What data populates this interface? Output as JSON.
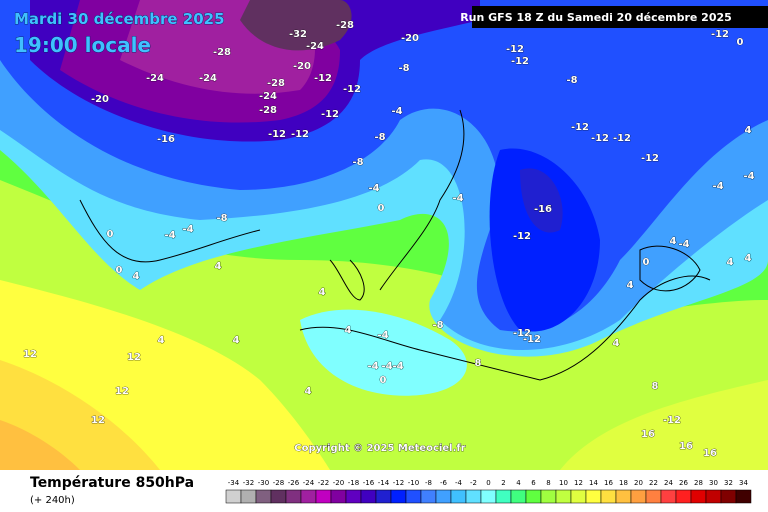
{
  "header": {
    "date": "Mardi 30 décembre 2025",
    "time": "19:00 locale",
    "run": "Run GFS 18 Z du Samedi 20 décembre 2025"
  },
  "copyright": "Copyright © 2025 Meteociel.fr",
  "footer": {
    "title": "Température 850hPa",
    "lead": "(+ 240h)"
  },
  "legend": {
    "ticks": [
      -34,
      -32,
      -30,
      -28,
      -26,
      -24,
      -22,
      -20,
      -18,
      -16,
      -14,
      -12,
      -10,
      -8,
      -6,
      -4,
      -2,
      0,
      2,
      4,
      6,
      8,
      10,
      12,
      14,
      16,
      18,
      20,
      22,
      24,
      26,
      28,
      30,
      32,
      34
    ],
    "colors": [
      "#d0d0d0",
      "#b0b0b0",
      "#806080",
      "#603060",
      "#803080",
      "#a020a0",
      "#c000c0",
      "#8000a0",
      "#6000c0",
      "#4000c0",
      "#2020d0",
      "#0020ff",
      "#2050ff",
      "#4080ff",
      "#40a0ff",
      "#40c0ff",
      "#60e0ff",
      "#80ffff",
      "#40ffc0",
      "#40ff80",
      "#60ff40",
      "#a0ff40",
      "#c0ff40",
      "#e0ff40",
      "#ffff40",
      "#ffe040",
      "#ffc040",
      "#ffa040",
      "#ff8040",
      "#ff4040",
      "#ff2020",
      "#e00000",
      "#c00000",
      "#800000",
      "#400000"
    ]
  },
  "map": {
    "labels": [
      -24,
      -24,
      -20,
      -16,
      -28,
      -28,
      -24,
      -28,
      -12,
      -12,
      -20,
      -12,
      -32,
      -24,
      -28,
      -20,
      -8,
      -12,
      -12,
      -8,
      -8,
      -4,
      -4,
      0,
      -8,
      -4,
      0,
      -4,
      4,
      0,
      4,
      -12,
      -12,
      -8,
      -12,
      -12,
      -12,
      -12,
      -16,
      -12,
      -4,
      -8,
      -12,
      -12,
      8,
      4,
      4,
      -4,
      -4,
      -4,
      -4,
      0,
      4,
      4,
      12,
      12,
      12,
      4,
      12,
      16,
      16,
      16,
      -12,
      8,
      4,
      4,
      0,
      4,
      -4,
      4,
      4,
      -4,
      -4,
      4,
      0,
      -12
    ]
  }
}
